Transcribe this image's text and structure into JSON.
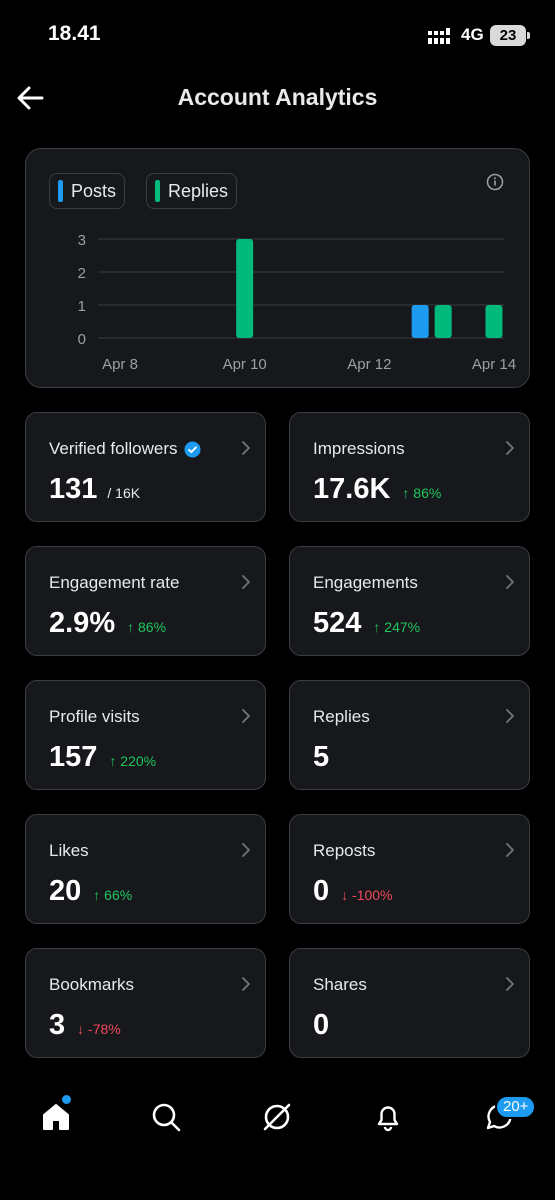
{
  "status_bar": {
    "time": "18.41",
    "network": "4G",
    "battery": "23"
  },
  "header": {
    "title": "Account Analytics"
  },
  "legend": [
    {
      "label": "Posts",
      "color": "#1d9bf0"
    },
    {
      "label": "Replies",
      "color": "#00ba7c"
    }
  ],
  "chart_data": {
    "type": "bar",
    "stacked": false,
    "x_labels": [
      "Apr 8",
      "Apr 10",
      "Apr 12",
      "Apr 14"
    ],
    "y_ticks": [
      0,
      1,
      2,
      3
    ],
    "ylim": [
      0,
      3
    ],
    "grid": true,
    "legend_position": "top-left",
    "series": [
      {
        "name": "Posts",
        "color": "#1d9bf0",
        "points": [
          {
            "x": "Apr 13",
            "y": 1
          }
        ]
      },
      {
        "name": "Replies",
        "color": "#00ba7c",
        "points": [
          {
            "x": "Apr 10",
            "y": 3
          },
          {
            "x": "Apr 13",
            "y": 1
          },
          {
            "x": "Apr 14",
            "y": 1
          }
        ]
      }
    ]
  },
  "stats": [
    {
      "label": "Verified followers",
      "value": "131",
      "sub": "/ 16K",
      "verified": true
    },
    {
      "label": "Impressions",
      "value": "17.6K",
      "delta": "↑ 86%",
      "dir": "up"
    },
    {
      "label": "Engagement rate",
      "value": "2.9%",
      "delta": "↑ 86%",
      "dir": "up"
    },
    {
      "label": "Engagements",
      "value": "524",
      "delta": "↑ 247%",
      "dir": "up"
    },
    {
      "label": "Profile visits",
      "value": "157",
      "delta": "↑ 220%",
      "dir": "up"
    },
    {
      "label": "Replies",
      "value": "5"
    },
    {
      "label": "Likes",
      "value": "20",
      "delta": "↑ 66%",
      "dir": "up"
    },
    {
      "label": "Reposts",
      "value": "0",
      "delta": "↓ -100%",
      "dir": "down"
    },
    {
      "label": "Bookmarks",
      "value": "3",
      "delta": "↓ -78%",
      "dir": "down"
    },
    {
      "label": "Shares",
      "value": "0"
    }
  ],
  "nav": {
    "items": [
      "home-icon",
      "search-icon",
      "grok-icon",
      "notifications-icon",
      "messages-icon"
    ],
    "messages_badge": "20+"
  }
}
